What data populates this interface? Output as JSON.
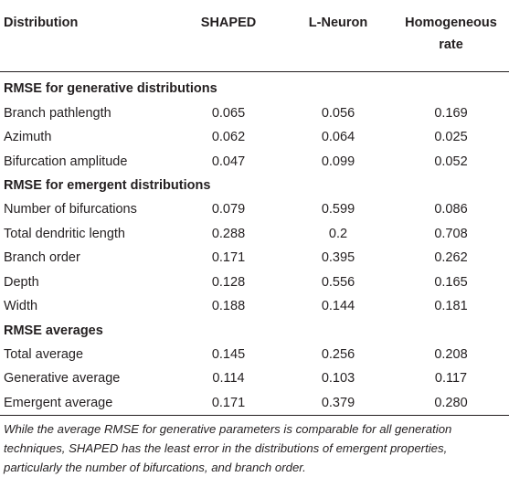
{
  "table": {
    "header": {
      "col0": "Distribution",
      "col1": "SHAPED",
      "col2": "L-Neuron",
      "col3_line1": "Homogeneous",
      "col3_line2": "rate"
    },
    "sections": [
      {
        "title": "RMSE for generative distributions",
        "rows": [
          {
            "label": "Branch pathlength",
            "shaped": "0.065",
            "lneuron": "0.056",
            "homog": "0.169"
          },
          {
            "label": "Azimuth",
            "shaped": "0.062",
            "lneuron": "0.064",
            "homog": "0.025"
          },
          {
            "label": "Bifurcation amplitude",
            "shaped": "0.047",
            "lneuron": "0.099",
            "homog": "0.052"
          }
        ]
      },
      {
        "title": "RMSE for emergent distributions",
        "rows": [
          {
            "label": "Number of bifurcations",
            "shaped": "0.079",
            "lneuron": "0.599",
            "homog": "0.086"
          },
          {
            "label": "Total dendritic length",
            "shaped": "0.288",
            "lneuron": "0.2",
            "homog": "0.708"
          },
          {
            "label": "Branch order",
            "shaped": "0.171",
            "lneuron": "0.395",
            "homog": "0.262"
          },
          {
            "label": "Depth",
            "shaped": "0.128",
            "lneuron": "0.556",
            "homog": "0.165"
          },
          {
            "label": "Width",
            "shaped": "0.188",
            "lneuron": "0.144",
            "homog": "0.181"
          }
        ]
      },
      {
        "title": "RMSE averages",
        "rows": [
          {
            "label": "Total average",
            "shaped": "0.145",
            "lneuron": "0.256",
            "homog": "0.208"
          },
          {
            "label": "Generative average",
            "shaped": "0.114",
            "lneuron": "0.103",
            "homog": "0.117"
          },
          {
            "label": "Emergent average",
            "shaped": "0.171",
            "lneuron": "0.379",
            "homog": "0.280"
          }
        ]
      }
    ]
  },
  "caption": "While the average RMSE for generative parameters is comparable for all generation techniques, SHAPED has the least error in the distributions of emergent properties, particularly the number of bifurcations, and branch order."
}
